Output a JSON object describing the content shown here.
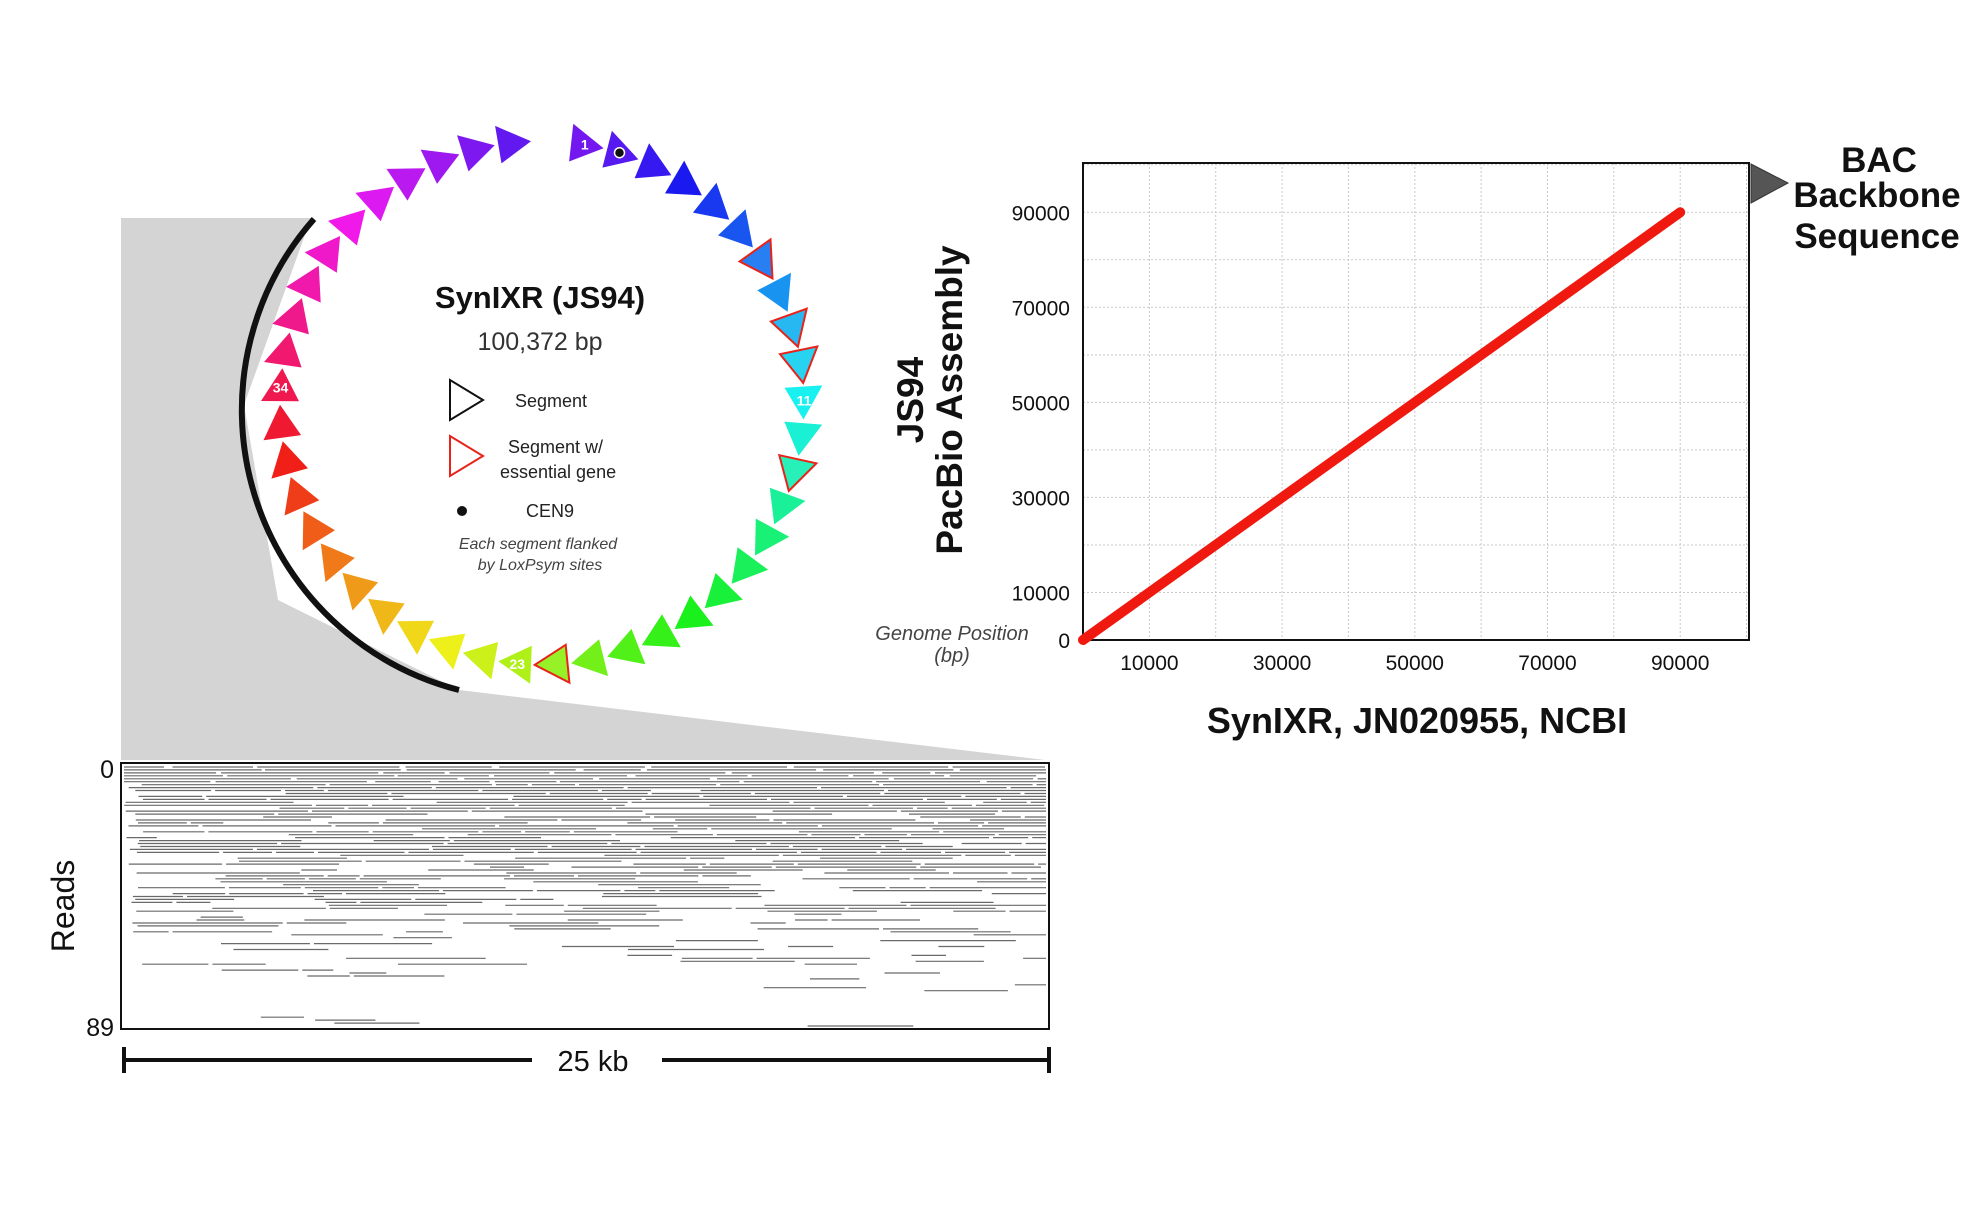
{
  "plasmid": {
    "title": "SynIXR (JS94)",
    "size": "100,372 bp",
    "segment_count": 44,
    "segment_labels": [
      {
        "index": 1,
        "text": "1"
      },
      {
        "index": 11,
        "text": "11"
      },
      {
        "index": 23,
        "text": "23"
      },
      {
        "index": 34,
        "text": "34"
      }
    ],
    "cen9_segment": 2,
    "essential_segments": [
      7,
      9,
      10,
      13,
      22
    ],
    "legend": {
      "segment": "Segment",
      "essential_line1": "Segment w/",
      "essential_line2": "essential gene",
      "cen": "CEN9",
      "note_line1": "Each segment flanked",
      "note_line2": "by LoxPsym sites"
    }
  },
  "coverage": {
    "ylabel": "Reads",
    "y_top": "0",
    "y_bottom": "89",
    "scale_label": "25 kb",
    "read_count": 89
  },
  "chart_data": {
    "type": "line",
    "x": [
      0,
      90000
    ],
    "series": [
      {
        "values": [
          0,
          90000
        ]
      }
    ],
    "xlabel": "SynIXR, JN020955, NCBI",
    "ylabel_line1": "JS94",
    "ylabel_line2": "PacBio Assembly",
    "x_ticks": [
      "10000",
      "30000",
      "50000",
      "70000",
      "90000"
    ],
    "y_ticks": [
      "0",
      "10000",
      "30000",
      "50000",
      "70000",
      "90000"
    ],
    "origin_note_line1": "Genome Position",
    "origin_note_line2": "(bp)",
    "xlim": [
      0,
      100372
    ],
    "ylim": [
      0,
      100372
    ],
    "grid": true,
    "line_color": "#f0190f",
    "annotation_line1": "BAC",
    "annotation_line2": "Backbone",
    "annotation_line3": "Sequence"
  }
}
